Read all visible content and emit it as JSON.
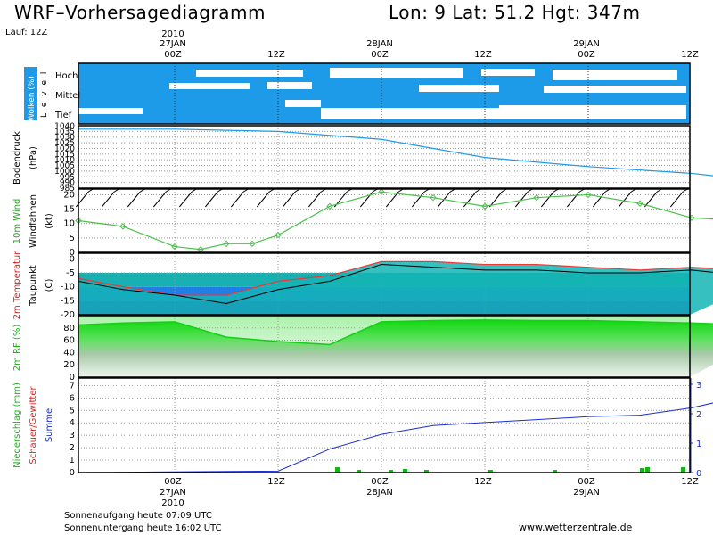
{
  "header": {
    "title": "WRF–Vorhersagediagramm",
    "location": "Lon: 9 Lat: 51.2 Hgt: 347m",
    "run": "Lauf: 12Z"
  },
  "time_axis": {
    "year": "2010",
    "ticks": [
      "00Z",
      "12Z",
      "00Z",
      "12Z",
      "00Z",
      "12Z"
    ],
    "dates": [
      "27JAN",
      "28JAN",
      "29JAN"
    ]
  },
  "footer": {
    "sunrise": "Sonnenaufgang heute 07:09 UTC",
    "sunset": "Sonnenuntergang heute 16:02 UTC",
    "website": "www.wetterzentrale.de"
  },
  "colors": {
    "cloud": "#1e9be8",
    "rf": "#16cf16",
    "temp_fill": "#14b5b5",
    "temp_line": "#ee3838",
    "precip_line": "#1a2fd0",
    "precip_bar": "#16b516"
  },
  "chart_data": [
    {
      "type": "area",
      "panel": "clouds",
      "ylabel": "Wolken (%)",
      "ylabel2": "L e v e l",
      "levels": [
        "Hoch",
        "Mittel",
        "Tief"
      ]
    },
    {
      "type": "line",
      "panel": "pressure",
      "ylabel": "Bodendruck",
      "yunit": "(hPa)",
      "yticks": [
        1040,
        1035,
        1030,
        1025,
        1020,
        1015,
        1010,
        1005,
        1000,
        995,
        990,
        985
      ],
      "ylim": [
        985,
        1040
      ],
      "x_hours": [
        -12,
        0,
        12,
        24,
        36,
        48,
        60,
        72
      ],
      "values": [
        1037,
        1037,
        1035,
        1028,
        1012,
        1004,
        998,
        988
      ]
    },
    {
      "type": "line",
      "panel": "wind",
      "ylabel": "10m Wind",
      "ylabel2": "Windfahnen",
      "yunit": "(kt)",
      "yticks": [
        0,
        5,
        10,
        15,
        20
      ],
      "ylim": [
        0,
        22
      ],
      "x_hours": [
        -12,
        -6,
        0,
        3,
        6,
        9,
        12,
        18,
        24,
        30,
        36,
        42,
        48,
        54,
        60,
        66,
        72
      ],
      "values": [
        11,
        9,
        2,
        1,
        3,
        3,
        6,
        16,
        21,
        19,
        16,
        19,
        20,
        17,
        12,
        11,
        13
      ]
    },
    {
      "type": "area",
      "panel": "temperature",
      "ylabel": "2m Temperatur",
      "ylabel2": "Taupunkt",
      "yunit": "(C)",
      "yticks": [
        0,
        -5,
        -10,
        -15,
        -20
      ],
      "ylim": [
        -20,
        2
      ],
      "x_hours": [
        -12,
        -6,
        0,
        6,
        12,
        18,
        24,
        30,
        36,
        42,
        48,
        54,
        60,
        66,
        72
      ],
      "series": [
        {
          "name": "2m Temperatur",
          "values": [
            -7,
            -10,
            -13,
            -13,
            -8,
            -6,
            -1,
            -1,
            -2,
            -2,
            -3,
            -4,
            -3,
            -4,
            -3
          ]
        },
        {
          "name": "Taupunkt",
          "values": [
            -8,
            -11,
            -13,
            -16,
            -11,
            -8,
            -2,
            -3,
            -4,
            -4,
            -5,
            -5,
            -4,
            -6,
            -4
          ]
        }
      ]
    },
    {
      "type": "area",
      "panel": "rh",
      "ylabel": "2m RF (%)",
      "yticks": [
        80,
        60,
        40,
        20,
        0
      ],
      "ylim": [
        0,
        100
      ],
      "x_hours": [
        -12,
        -6,
        0,
        6,
        12,
        18,
        24,
        30,
        36,
        42,
        48,
        54,
        60,
        66,
        72
      ],
      "values": [
        85,
        88,
        90,
        65,
        58,
        53,
        90,
        92,
        93,
        92,
        92,
        90,
        88,
        85,
        92
      ]
    },
    {
      "type": "bar",
      "panel": "precipitation",
      "ylabel": "Niederschlag (mm)",
      "ylabel2": "Schauer/Gewitter",
      "ylabel3": "Summe",
      "yticks": [
        0,
        1,
        2,
        3,
        4,
        5,
        6,
        7
      ],
      "y2ticks": [
        0,
        1,
        2,
        3
      ],
      "ylim": [
        0,
        7.6
      ],
      "x_hours": [
        -12,
        12,
        18,
        24,
        30,
        36,
        42,
        48,
        54,
        60,
        66,
        72
      ],
      "cumulative": [
        0,
        0.05,
        0.8,
        1.3,
        1.6,
        1.7,
        1.8,
        1.9,
        1.95,
        2.2,
        2.6,
        3.1
      ]
    }
  ]
}
